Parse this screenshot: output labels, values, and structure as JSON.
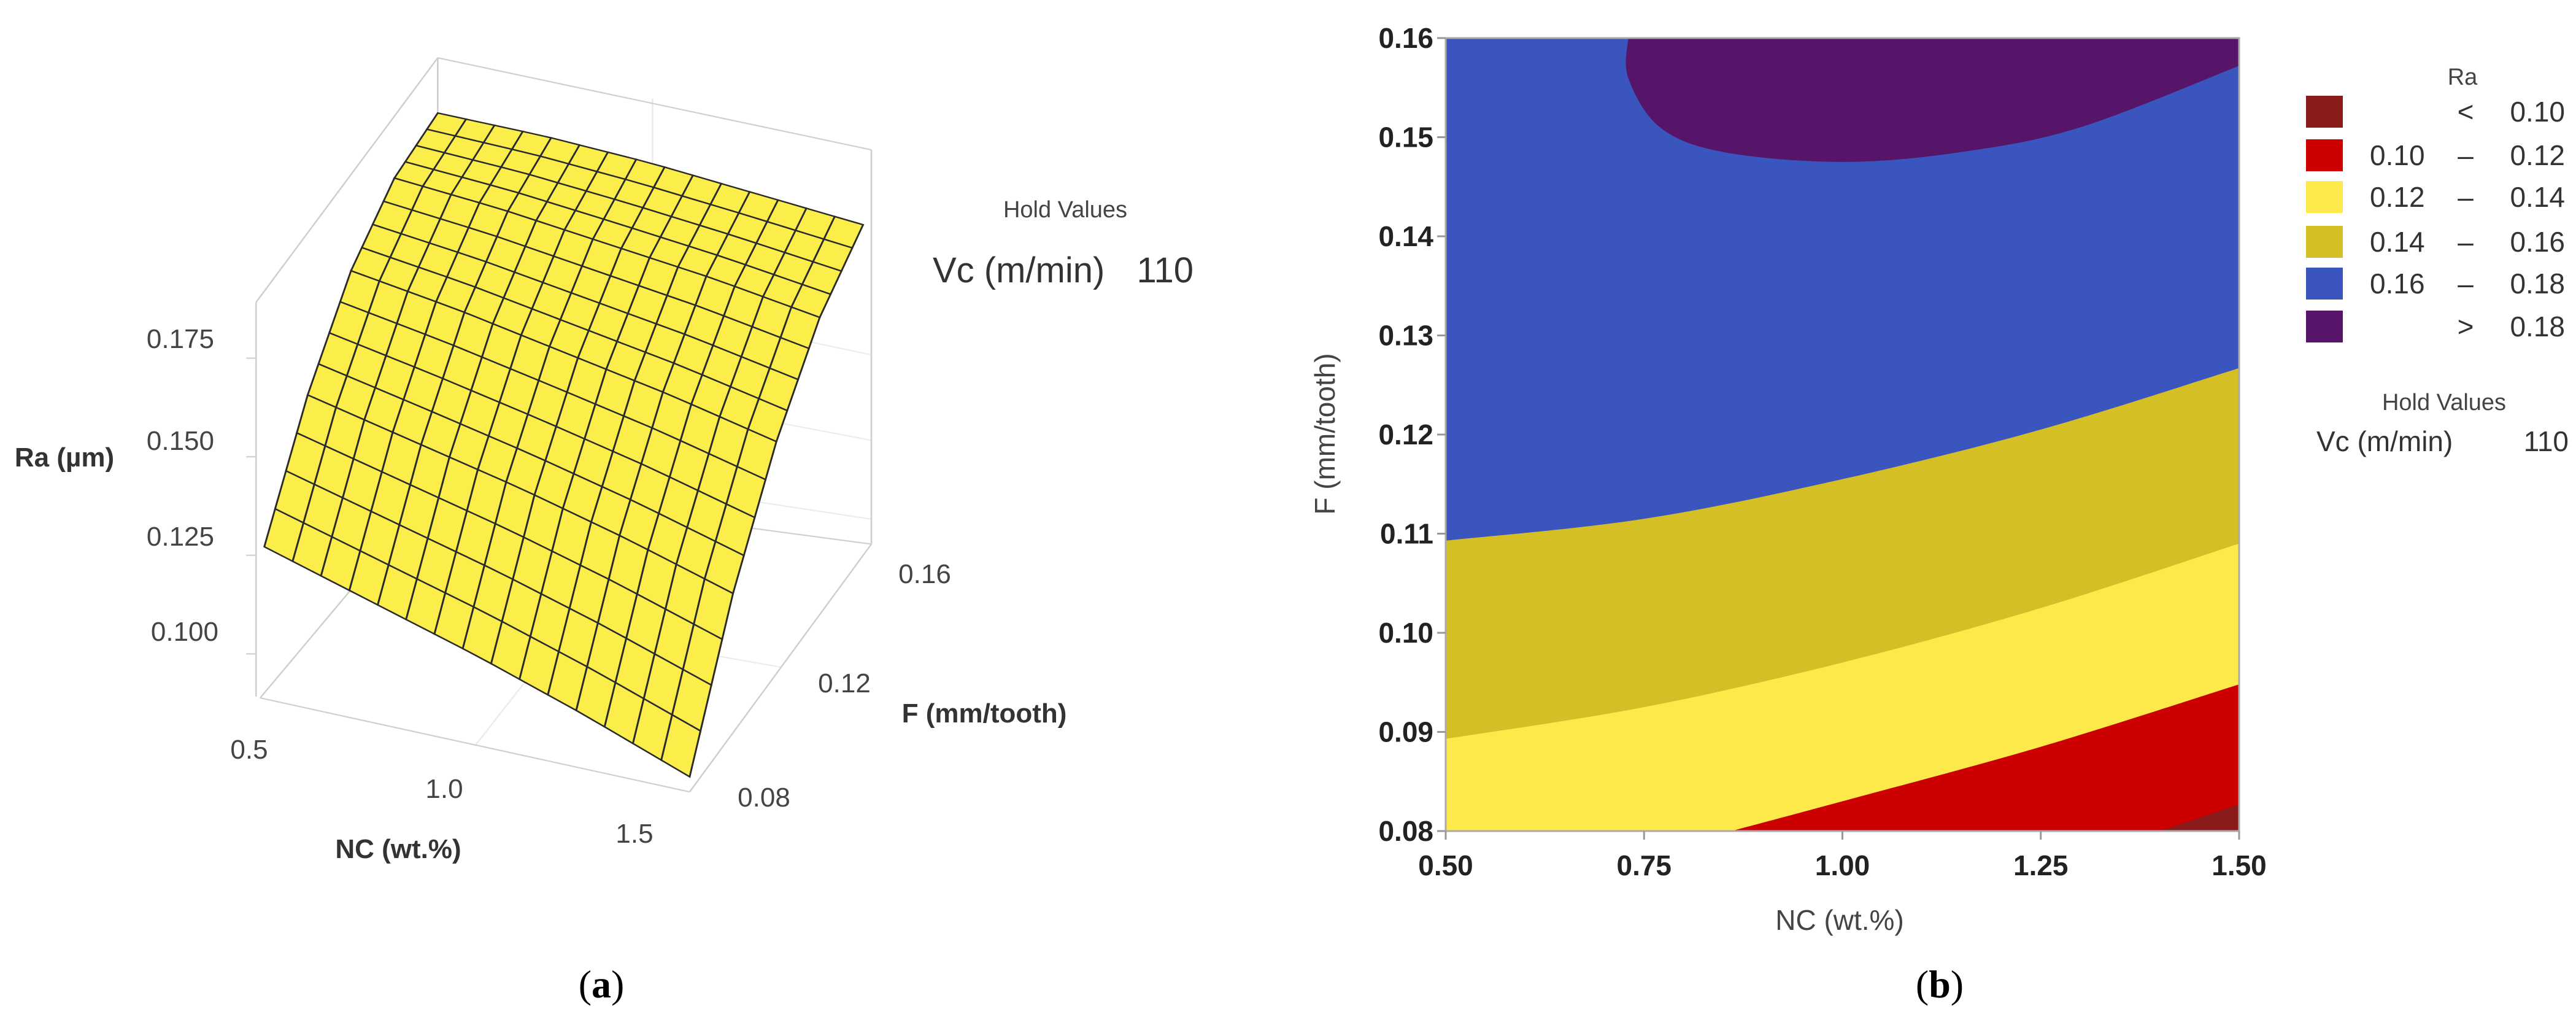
{
  "chart_data": [
    {
      "panel": "a",
      "type": "surface",
      "caption": "a",
      "zlabel": "Ra (µm)",
      "xlabel": "NC (wt.%)",
      "ylabel": "F (mm/tooth)",
      "z_ticks": [
        "0.175",
        "0.150",
        "0.125",
        "0.100"
      ],
      "x_ticks": [
        "0.5",
        "1.0",
        "1.5"
      ],
      "y_ticks": [
        "0.08",
        "0.12",
        "0.16"
      ],
      "xlim": [
        0.5,
        1.5
      ],
      "ylim": [
        0.08,
        0.16
      ],
      "hold_title": "Hold Values",
      "hold_label": "Vc (m/min)",
      "hold_value": "110",
      "surface_color": "#fbed4a",
      "grid_x": [
        0.5,
        0.75,
        1.0,
        1.25,
        1.5
      ],
      "grid_y": [
        0.08,
        0.1,
        0.12,
        0.14,
        0.16
      ],
      "z": [
        [
          0.128,
          0.12,
          0.112,
          0.103,
          0.093
        ],
        [
          0.154,
          0.148,
          0.142,
          0.135,
          0.127
        ],
        [
          0.173,
          0.169,
          0.164,
          0.159,
          0.153
        ],
        [
          0.184,
          0.182,
          0.179,
          0.176,
          0.172
        ],
        [
          0.188,
          0.188,
          0.187,
          0.185,
          0.183
        ]
      ]
    },
    {
      "panel": "b",
      "type": "contour",
      "caption": "b",
      "xlabel": "NC (wt.%)",
      "ylabel": "F (mm/tooth)",
      "xlim": [
        0.5,
        1.5
      ],
      "ylim": [
        0.08,
        0.16
      ],
      "x_ticks": [
        "0.50",
        "0.75",
        "1.00",
        "1.25",
        "1.50"
      ],
      "x_tick_values": [
        0.5,
        0.75,
        1.0,
        1.25,
        1.5
      ],
      "y_ticks": [
        "0.16",
        "0.15",
        "0.14",
        "0.13",
        "0.12",
        "0.11",
        "0.10",
        "0.09",
        "0.08"
      ],
      "y_tick_values": [
        0.16,
        0.15,
        0.14,
        0.13,
        0.12,
        0.11,
        0.1,
        0.09,
        0.08
      ],
      "legend_title": "Ra",
      "legend": [
        {
          "low": "",
          "sep": "<",
          "high": "0.10",
          "color": "#8b1a1a"
        },
        {
          "low": "0.10",
          "sep": "–",
          "high": "0.12",
          "color": "#cc0000"
        },
        {
          "low": "0.12",
          "sep": "–",
          "high": "0.14",
          "color": "#fde94a"
        },
        {
          "low": "0.14",
          "sep": "–",
          "high": "0.16",
          "color": "#d4c026"
        },
        {
          "low": "0.16",
          "sep": "–",
          "high": "0.18",
          "color": "#3b55be"
        },
        {
          "low": "",
          "sep": ">",
          "high": "0.18",
          "color": "#561569"
        }
      ],
      "hold_title": "Hold Values",
      "hold_label": "Vc (m/min)",
      "hold_value": "110",
      "contours": {
        "c010": [
          [
            1.4,
            0.08
          ],
          [
            1.5,
            0.0827
          ]
        ],
        "c012": [
          [
            0.86,
            0.08
          ],
          [
            1.0,
            0.083
          ],
          [
            1.25,
            0.0885
          ],
          [
            1.5,
            0.0948
          ]
        ],
        "c014": [
          [
            0.5,
            0.0893
          ],
          [
            0.75,
            0.0925
          ],
          [
            1.0,
            0.097
          ],
          [
            1.25,
            0.1025
          ],
          [
            1.5,
            0.109
          ]
        ],
        "c016": [
          [
            0.5,
            0.1093
          ],
          [
            0.75,
            0.1115
          ],
          [
            1.0,
            0.1155
          ],
          [
            1.25,
            0.1205
          ],
          [
            1.5,
            0.1267
          ]
        ],
        "c018": [
          [
            0.73,
            0.16
          ],
          [
            0.73,
            0.156
          ],
          [
            0.77,
            0.151
          ],
          [
            0.85,
            0.1485
          ],
          [
            1.0,
            0.1475
          ],
          [
            1.15,
            0.1485
          ],
          [
            1.3,
            0.151
          ],
          [
            1.5,
            0.1572
          ]
        ]
      }
    }
  ]
}
